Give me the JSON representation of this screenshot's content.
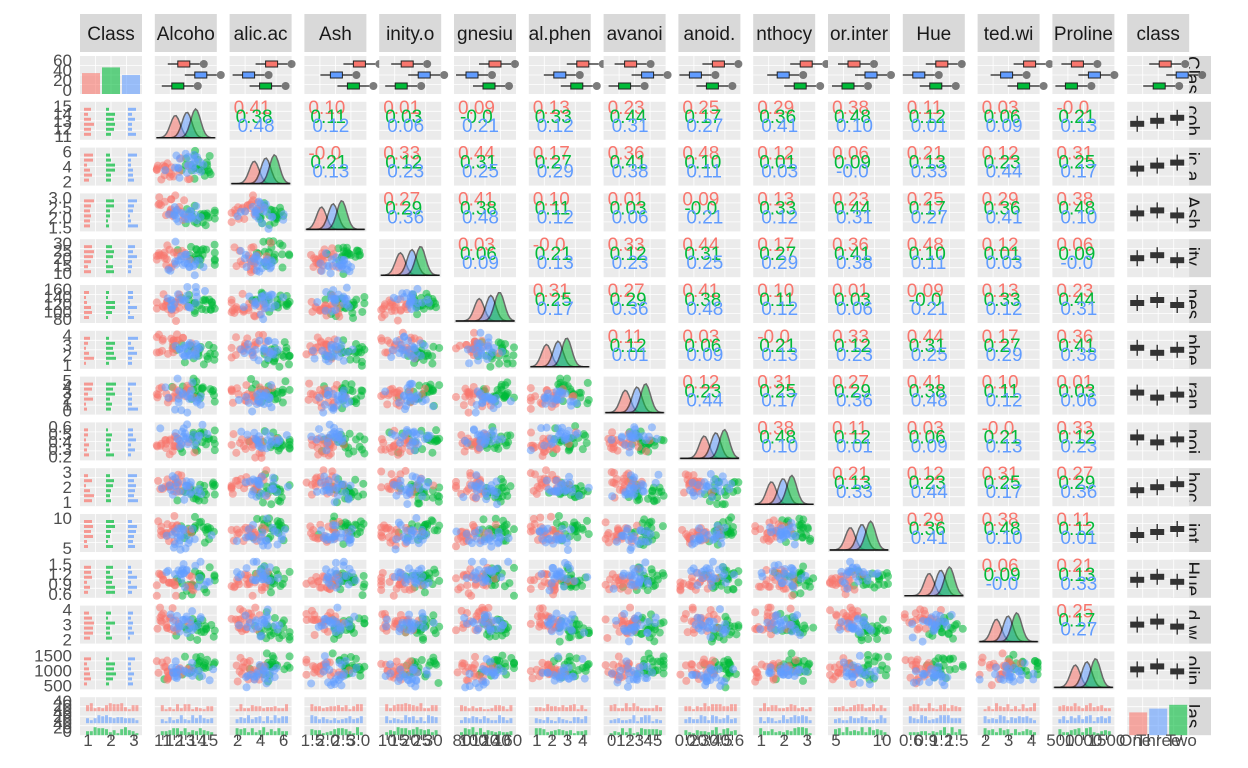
{
  "chart_data": {
    "type": "scatter_matrix",
    "title": "",
    "variables": [
      "Class",
      "Alcohol",
      "Malic.acid",
      "Ash",
      "Alcalinity.of.ash",
      "Magnesium",
      "Total.phenols",
      "Flavanoids",
      "Nonflavanoid.phenols",
      "Proanthocyanins",
      "Color.intensity",
      "Hue",
      "OD280.OD315.of.diluted.wines",
      "Proline",
      "class"
    ],
    "column_strip_labels": [
      "Class",
      "Alcoho",
      "alic.ac",
      "Ash",
      "inity.o",
      "gnesiu",
      "al.phen",
      "avanoi",
      "anoid.",
      "nthocy",
      "or.inter",
      "Hue",
      "ted.wi",
      "Proline",
      "class"
    ],
    "row_strip_labels": [
      "Clas",
      "coh",
      "ic.a",
      "Ash",
      "ity.",
      "nes",
      "phe",
      "ran",
      "noi",
      "hoc",
      "int",
      "Hue",
      "d.w",
      "olin",
      "las"
    ],
    "group_variable": "class",
    "groups": [
      {
        "name": "One",
        "color": "#F8766D"
      },
      {
        "name": "Three",
        "color": "#619CFF"
      },
      {
        "name": "Two",
        "color": "#00BA38"
      }
    ],
    "panel_types": {
      "diagonal": "density by group",
      "lower": "scatter by group",
      "upper": "correlation text by group",
      "first_column": "histogram of Class by group",
      "last_column": "boxplot by class",
      "last_row": "histogram faceted by class",
      "first_row": "boxplot of Class by class"
    },
    "ranges": {
      "Class": [
        1,
        3
      ],
      "Alcohol": [
        11,
        15
      ],
      "Malic.acid": [
        0.7,
        5.8
      ],
      "Ash": [
        1.36,
        3.23
      ],
      "Alcalinity.of.ash": [
        10.6,
        30
      ],
      "Magnesium": [
        70,
        162
      ],
      "Total.phenols": [
        0.98,
        3.88
      ],
      "Flavanoids": [
        0.34,
        5.08
      ],
      "Nonflavanoid.phenols": [
        0.13,
        0.66
      ],
      "Proanthocyanins": [
        0.41,
        3.58
      ],
      "Color.intensity": [
        1.28,
        13
      ],
      "Hue": [
        0.48,
        1.71
      ],
      "OD280.OD315.of.diluted.wines": [
        1.27,
        4
      ],
      "Proline": [
        278,
        1680
      ]
    },
    "bottom_tick_labels": [
      [
        "1",
        "2",
        "3"
      ],
      [
        "11",
        "12",
        "13",
        "14",
        "15"
      ],
      [
        "2",
        "4",
        "6"
      ],
      [
        "1.5",
        "2.0",
        "2.5",
        "3.0"
      ],
      [
        "10",
        "15",
        "20",
        "25",
        "30"
      ],
      [
        "80",
        "100",
        "120",
        "140",
        "160"
      ],
      [
        "1",
        "2",
        "3",
        "4"
      ],
      [
        "0",
        "1",
        "2",
        "3",
        "4",
        "5"
      ],
      [
        "0.2",
        "0.3",
        "0.4",
        "0.5",
        "0.6"
      ],
      [
        "1",
        "2",
        "3"
      ],
      [
        "5",
        "10"
      ],
      [
        "0.6",
        "0.9",
        "1.2",
        "1.5"
      ],
      [
        "2",
        "3",
        "4"
      ],
      [
        "500",
        "1000",
        "1500"
      ],
      [
        "One",
        "Three",
        "Two"
      ]
    ],
    "left_tick_labels": [
      [
        "60",
        "40",
        "20",
        "0"
      ],
      [
        "15",
        "14",
        "13",
        "12",
        "11"
      ],
      [
        "6",
        "4",
        "2"
      ],
      [
        "3.0",
        "2.5",
        "2.0",
        "1.5"
      ],
      [
        "30",
        "25",
        "20",
        "15",
        "10"
      ],
      [
        "160",
        "140",
        "120",
        "100",
        "80"
      ],
      [
        "4",
        "3",
        "2",
        "1"
      ],
      [
        "5",
        "4",
        "3",
        "2",
        "1",
        "0"
      ],
      [
        "0.6",
        "0.5",
        "0.4",
        "0.3",
        "0.2"
      ],
      [
        "3",
        "2",
        "1"
      ],
      [
        "10",
        "5"
      ],
      [
        "1.5",
        "1.2",
        "0.9",
        "0.6"
      ],
      [
        "4",
        "3",
        "2"
      ],
      [
        "1500",
        "1000",
        "500"
      ],
      [
        "40",
        "20",
        "0",
        "40",
        "20",
        "0",
        "40",
        "20",
        "0"
      ]
    ],
    "correlations_by_group": {
      "note": "upper-panel labels, overlapping and unreadable in the image; values shown are legible fragments only",
      "visible_fragments": [
        "-0.0",
        "0.21",
        "0.13",
        "0.33",
        "0.12",
        "0.23",
        "0.44",
        "0.31",
        "0.25",
        "0.17",
        "0.27",
        "0.29",
        "0.36",
        "0.41",
        "0.38",
        "0.48",
        "0.10",
        "0.11",
        "0.12",
        "0.01",
        "0.03",
        "0.06",
        "0.09"
      ]
    }
  }
}
